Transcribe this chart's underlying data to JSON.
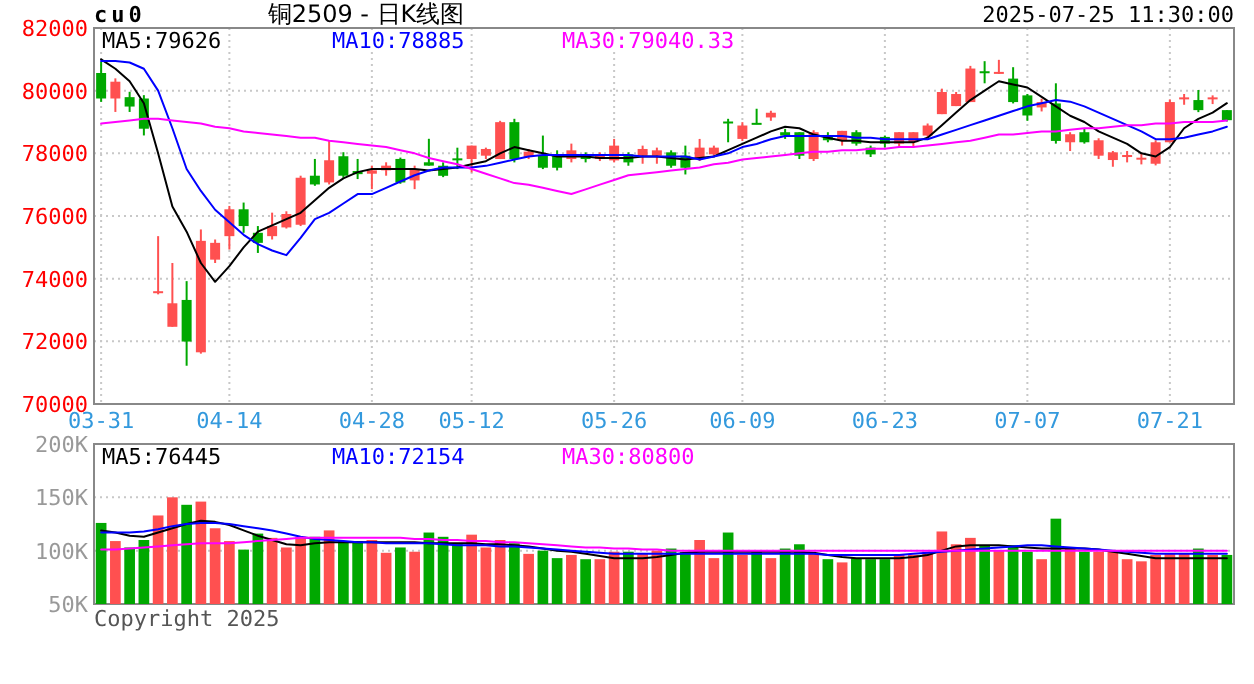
{
  "chart_data": [
    {
      "type": "candlestick",
      "title": "铜2509 - 日K线图",
      "annotations": [
        "cu0",
        "2025-07-25 11:30:00"
      ],
      "categories": [
        "03-31",
        null,
        null,
        null,
        null,
        null,
        null,
        null,
        null,
        "04-14",
        null,
        null,
        null,
        null,
        null,
        null,
        null,
        null,
        null,
        "04-28",
        null,
        null,
        null,
        null,
        null,
        null,
        "05-12",
        null,
        null,
        null,
        null,
        null,
        null,
        null,
        null,
        null,
        "05-26",
        null,
        null,
        null,
        null,
        null,
        null,
        null,
        null,
        "06-09",
        null,
        null,
        null,
        null,
        null,
        null,
        null,
        null,
        null,
        "06-23",
        null,
        null,
        null,
        null,
        null,
        null,
        null,
        null,
        null,
        "07-07",
        null,
        null,
        null,
        null,
        null,
        null,
        null,
        null,
        null,
        "07-21",
        null,
        null,
        null,
        null
      ],
      "ohlc": [
        [
          80564,
          80929,
          79643,
          79750
        ],
        [
          79750,
          80393,
          79321,
          80286
        ],
        [
          79793,
          79964,
          79321,
          79493
        ],
        [
          79750,
          79857,
          78571,
          78786
        ],
        [
          73536,
          75357,
          73500,
          73600
        ],
        [
          72464,
          74500,
          72464,
          73214
        ],
        [
          73321,
          73921,
          71221,
          71993
        ],
        [
          71650,
          75571,
          71607,
          75207
        ],
        [
          74607,
          75250,
          74500,
          75143
        ],
        [
          75357,
          76321,
          74929,
          76214
        ],
        [
          76214,
          76429,
          75464,
          75679
        ],
        [
          75464,
          75679,
          74821,
          75143
        ],
        [
          75357,
          76107,
          75250,
          75679
        ],
        [
          75636,
          76150,
          75600,
          76064
        ],
        [
          75721,
          77286,
          75679,
          77221
        ],
        [
          77286,
          77821,
          76964,
          77007
        ],
        [
          77071,
          78421,
          77007,
          77779
        ],
        [
          77907,
          78036,
          77221,
          77286
        ],
        [
          77436,
          77821,
          77179,
          77336
        ],
        [
          77350,
          77607,
          76857,
          77457
        ],
        [
          77457,
          77714,
          77286,
          77607
        ],
        [
          77821,
          77864,
          77029,
          77071
        ],
        [
          77136,
          77607,
          76857,
          77500
        ],
        [
          77714,
          78464,
          77607,
          77607
        ],
        [
          77604,
          77711,
          77240,
          77283
        ],
        [
          77840,
          78180,
          77497,
          77818
        ],
        [
          77818,
          78246,
          77390,
          78246
        ],
        [
          77925,
          78182,
          77818,
          78139
        ],
        [
          77818,
          79038,
          77818,
          78995
        ],
        [
          78995,
          79102,
          77711,
          77818
        ],
        [
          77882,
          78139,
          77818,
          78054
        ],
        [
          77925,
          78567,
          77497,
          77540
        ],
        [
          77968,
          78096,
          77454,
          77540
        ],
        [
          77818,
          78310,
          77711,
          78096
        ],
        [
          77968,
          78032,
          77711,
          77818
        ],
        [
          77818,
          78032,
          77754,
          77968
        ],
        [
          77775,
          78460,
          77711,
          78246
        ],
        [
          77968,
          78032,
          77604,
          77711
        ],
        [
          77925,
          78246,
          77668,
          78139
        ],
        [
          77925,
          78182,
          77668,
          78096
        ],
        [
          78032,
          78096,
          77540,
          77604
        ],
        [
          77925,
          78246,
          77326,
          77540
        ],
        [
          77818,
          78460,
          77754,
          78182
        ],
        [
          77968,
          78246,
          77925,
          78182
        ],
        [
          79016,
          79102,
          78353,
          78995
        ],
        [
          78460,
          78995,
          78396,
          78888
        ],
        [
          78973,
          79423,
          78931,
          78952
        ],
        [
          79145,
          79359,
          79038,
          79295
        ],
        [
          78674,
          78781,
          78460,
          78567
        ],
        [
          78674,
          78674,
          77818,
          77925
        ],
        [
          77818,
          78738,
          77754,
          78674
        ],
        [
          78567,
          78674,
          78353,
          78417
        ],
        [
          78417,
          78717,
          78246,
          78717
        ],
        [
          78674,
          78738,
          78246,
          78310
        ],
        [
          78182,
          78246,
          77882,
          77968
        ],
        [
          78524,
          78567,
          78182,
          78310
        ],
        [
          78310,
          78674,
          78182,
          78674
        ],
        [
          78353,
          78674,
          78182,
          78674
        ],
        [
          78567,
          78952,
          78524,
          78888
        ],
        [
          79251,
          80064,
          79251,
          79957
        ],
        [
          79508,
          79957,
          79508,
          79893
        ],
        [
          79636,
          80791,
          79636,
          80706
        ],
        [
          80620,
          80941,
          80235,
          80556
        ],
        [
          80556,
          80984,
          80535,
          80599
        ],
        [
          80385,
          80749,
          79593,
          79636
        ],
        [
          79850,
          79893,
          79037,
          79208
        ],
        [
          79465,
          79743,
          79337,
          79636
        ],
        [
          79593,
          80235,
          78310,
          78396
        ],
        [
          78353,
          78674,
          78075,
          78610
        ],
        [
          78674,
          78781,
          78310,
          78353
        ],
        [
          77925,
          78481,
          77818,
          78417
        ],
        [
          77786,
          78075,
          77572,
          78032
        ],
        [
          77904,
          78075,
          77711,
          77946
        ],
        [
          77818,
          78011,
          77647,
          77861
        ],
        [
          77668,
          78417,
          77615,
          78353
        ],
        [
          78353,
          79722,
          78353,
          79636
        ],
        [
          79743,
          79893,
          79550,
          79786
        ],
        [
          79700,
          80021,
          79315,
          79379
        ],
        [
          79743,
          79850,
          79572,
          79786
        ],
        [
          79379,
          79379,
          79016,
          79058
        ]
      ],
      "colors": [
        "#00a800",
        "#ff5050",
        "#00a800",
        "#00a800",
        "#ff5050",
        "#ff5050",
        "#00a800",
        "#ff5050",
        "#ff5050",
        "#ff5050",
        "#00a800",
        "#00a800",
        "#ff5050",
        "#ff5050",
        "#ff5050",
        "#00a800",
        "#ff5050",
        "#00a800",
        "#00a800",
        "#ff5050",
        "#ff5050",
        "#00a800",
        "#ff5050",
        "#00a800",
        "#00a800",
        "#00a800",
        "#ff5050",
        "#ff5050",
        "#ff5050",
        "#00a800",
        "#ff5050",
        "#00a800",
        "#00a800",
        "#ff5050",
        "#00a800",
        "#ff5050",
        "#ff5050",
        "#00a800",
        "#ff5050",
        "#ff5050",
        "#00a800",
        "#00a800",
        "#ff5050",
        "#ff5050",
        "#00a800",
        "#ff5050",
        "#00a800",
        "#ff5050",
        "#00a800",
        "#00a800",
        "#ff5050",
        "#00a800",
        "#ff5050",
        "#00a800",
        "#00a800",
        "#00a800",
        "#ff5050",
        "#ff5050",
        "#ff5050",
        "#ff5050",
        "#ff5050",
        "#ff5050",
        "#00a800",
        "#ff5050",
        "#00a800",
        "#00a800",
        "#ff5050",
        "#00a800",
        "#ff5050",
        "#00a800",
        "#ff5050",
        "#ff5050",
        "#ff5050",
        "#ff5050",
        "#ff5050",
        "#ff5050",
        "#ff5050",
        "#00a800",
        "#ff5050",
        "#00a800"
      ],
      "series": [
        {
          "type": "line",
          "name": "MA5:79626",
          "color": "#000000",
          "values": [
            81000,
            80700,
            80300,
            79600,
            78000,
            76300,
            75500,
            74500,
            73900,
            74400,
            75000,
            75500,
            75700,
            75900,
            76100,
            76500,
            76900,
            77200,
            77400,
            77500,
            77500,
            77500,
            77500,
            77450,
            77500,
            77550,
            77650,
            77750,
            78000,
            78200,
            78100,
            78000,
            77900,
            77900,
            77900,
            77850,
            77850,
            77850,
            77900,
            77900,
            77850,
            77800,
            77850,
            77900,
            78100,
            78300,
            78500,
            78700,
            78850,
            78800,
            78600,
            78500,
            78400,
            78400,
            78350,
            78350,
            78350,
            78350,
            78500,
            78900,
            79300,
            79700,
            80000,
            80300,
            80200,
            80100,
            79800,
            79500,
            79200,
            79000,
            78700,
            78500,
            78300,
            78000,
            77900,
            78200,
            78800,
            79100,
            79300,
            79600
          ]
        },
        {
          "type": "line",
          "name": "MA10:78885",
          "color": "#0000ff",
          "values": [
            80950,
            80950,
            80900,
            80700,
            80000,
            78800,
            77500,
            76800,
            76200,
            75800,
            75400,
            75100,
            74900,
            74750,
            75300,
            75900,
            76100,
            76400,
            76700,
            76700,
            76900,
            77100,
            77300,
            77450,
            77550,
            77550,
            77550,
            77600,
            77700,
            77800,
            77900,
            77950,
            77950,
            77950,
            77950,
            77950,
            77950,
            77950,
            77900,
            77900,
            77900,
            77900,
            77800,
            77900,
            78000,
            78200,
            78300,
            78450,
            78550,
            78550,
            78550,
            78550,
            78550,
            78500,
            78500,
            78450,
            78450,
            78450,
            78450,
            78600,
            78750,
            78900,
            79050,
            79200,
            79350,
            79500,
            79600,
            79700,
            79650,
            79500,
            79300,
            79100,
            78900,
            78700,
            78450,
            78450,
            78500,
            78600,
            78700,
            78850
          ]
        },
        {
          "type": "line",
          "name": "MA30:79040.33",
          "color": "#ff00ff",
          "values": [
            78950,
            79000,
            79050,
            79100,
            79100,
            79050,
            79000,
            78950,
            78850,
            78800,
            78700,
            78650,
            78600,
            78550,
            78500,
            78500,
            78400,
            78350,
            78300,
            78250,
            78200,
            78100,
            78000,
            77850,
            77750,
            77650,
            77500,
            77350,
            77200,
            77050,
            77000,
            76900,
            76800,
            76700,
            76850,
            77000,
            77150,
            77300,
            77350,
            77400,
            77450,
            77500,
            77550,
            77650,
            77700,
            77800,
            77850,
            77900,
            77950,
            78000,
            78050,
            78050,
            78100,
            78100,
            78150,
            78150,
            78200,
            78200,
            78250,
            78300,
            78350,
            78400,
            78500,
            78600,
            78600,
            78650,
            78700,
            78700,
            78750,
            78800,
            78800,
            78850,
            78900,
            78900,
            78950,
            78950,
            79000,
            79000,
            79000,
            79050
          ]
        }
      ],
      "ylim": [
        70000,
        82000
      ],
      "yticks": [
        70000,
        72000,
        74000,
        76000,
        78000,
        80000,
        82000
      ],
      "grid": true,
      "legend": "top"
    },
    {
      "type": "bar",
      "annotations": [
        "Copyright 2025"
      ],
      "tick_labels": "y",
      "categories": [
        null,
        null,
        null,
        null,
        null,
        null,
        null,
        null,
        null,
        null,
        null,
        null,
        null,
        null,
        null,
        null,
        null,
        null,
        null,
        null,
        null,
        null,
        null,
        null,
        null,
        null,
        null,
        null,
        null,
        null,
        null,
        null,
        null,
        null,
        null,
        null,
        null,
        null,
        null,
        null,
        null,
        null,
        null,
        null,
        null,
        null,
        null,
        null,
        null,
        null,
        null,
        null,
        null,
        null,
        null,
        null,
        null,
        null,
        null,
        null,
        null,
        null,
        null,
        null,
        null,
        null,
        null,
        null,
        null,
        null,
        null,
        null,
        null,
        null,
        null,
        null,
        null,
        null,
        null,
        null
      ],
      "series": [
        {
          "type": "bar",
          "values": [
            126000,
            109000,
            103000,
            110000,
            133000,
            150000,
            143000,
            146000,
            121000,
            109000,
            101000,
            116000,
            112000,
            103000,
            113000,
            113000,
            119000,
            109000,
            109000,
            110000,
            98000,
            103000,
            99000,
            117000,
            113000,
            107000,
            115000,
            103000,
            110000,
            107000,
            97000,
            100000,
            93000,
            96000,
            92000,
            92000,
            99000,
            99000,
            97000,
            100000,
            102000,
            99000,
            110000,
            93000,
            117000,
            96000,
            99000,
            93000,
            102000,
            106000,
            97000,
            92000,
            89000,
            93000,
            92000,
            92000,
            96000,
            96000,
            99000,
            118000,
            106000,
            112000,
            105000,
            100000,
            105000,
            99000,
            92000,
            130000,
            103000,
            99000,
            99000,
            99000,
            92000,
            90000,
            96000,
            97000,
            97000,
            102000,
            96000,
            96000
          ],
          "colors": [
            "#00a800",
            "#ff5050",
            "#00a800",
            "#00a800",
            "#ff5050",
            "#ff5050",
            "#00a800",
            "#ff5050",
            "#ff5050",
            "#ff5050",
            "#00a800",
            "#00a800",
            "#ff5050",
            "#ff5050",
            "#ff5050",
            "#00a800",
            "#ff5050",
            "#00a800",
            "#00a800",
            "#ff5050",
            "#ff5050",
            "#00a800",
            "#ff5050",
            "#00a800",
            "#00a800",
            "#00a800",
            "#ff5050",
            "#ff5050",
            "#ff5050",
            "#00a800",
            "#ff5050",
            "#00a800",
            "#00a800",
            "#ff5050",
            "#00a800",
            "#ff5050",
            "#ff5050",
            "#00a800",
            "#ff5050",
            "#ff5050",
            "#00a800",
            "#00a800",
            "#ff5050",
            "#ff5050",
            "#00a800",
            "#ff5050",
            "#00a800",
            "#ff5050",
            "#00a800",
            "#00a800",
            "#ff5050",
            "#00a800",
            "#ff5050",
            "#00a800",
            "#00a800",
            "#00a800",
            "#ff5050",
            "#ff5050",
            "#ff5050",
            "#ff5050",
            "#ff5050",
            "#ff5050",
            "#00a800",
            "#ff5050",
            "#00a800",
            "#00a800",
            "#ff5050",
            "#00a800",
            "#ff5050",
            "#00a800",
            "#ff5050",
            "#ff5050",
            "#ff5050",
            "#ff5050",
            "#ff5050",
            "#ff5050",
            "#ff5050",
            "#00a800",
            "#ff5050",
            "#00a800"
          ]
        },
        {
          "type": "line",
          "name": "MA5:76445",
          "color": "#000000",
          "values": [
            119000,
            117000,
            114000,
            113000,
            117000,
            121000,
            125000,
            128000,
            127000,
            124000,
            119000,
            114000,
            110000,
            106000,
            105000,
            107000,
            108000,
            108000,
            108000,
            108000,
            108000,
            108000,
            108000,
            107000,
            107000,
            107000,
            107000,
            106000,
            106000,
            105000,
            104000,
            102000,
            100000,
            99000,
            97000,
            95000,
            93000,
            93000,
            93000,
            94000,
            96000,
            98000,
            99000,
            99000,
            99000,
            99000,
            99000,
            99000,
            99000,
            99000,
            98000,
            96000,
            94000,
            93000,
            93000,
            93000,
            93000,
            94000,
            96000,
            100000,
            104000,
            105000,
            105000,
            105000,
            104000,
            103000,
            102000,
            102000,
            102000,
            102000,
            101000,
            99000,
            97000,
            95000,
            93000,
            93000,
            93000,
            93000,
            93000,
            93000
          ]
        },
        {
          "type": "line",
          "name": "MA10:72154",
          "color": "#0000ff",
          "values": [
            117000,
            117000,
            117000,
            118000,
            120000,
            123000,
            125000,
            126000,
            126000,
            125000,
            123000,
            121000,
            119000,
            116000,
            113000,
            111000,
            110000,
            109000,
            108000,
            108000,
            107000,
            107000,
            107000,
            107000,
            106000,
            105000,
            105000,
            105000,
            104000,
            104000,
            103000,
            102000,
            101000,
            100000,
            99000,
            98000,
            97000,
            97000,
            97000,
            97000,
            97000,
            97000,
            97000,
            97000,
            97000,
            97000,
            97000,
            97000,
            97000,
            97000,
            97000,
            96000,
            96000,
            96000,
            96000,
            96000,
            96000,
            97000,
            98000,
            99000,
            100000,
            101000,
            102000,
            103000,
            104000,
            105000,
            105000,
            104000,
            103000,
            102000,
            101000,
            100000,
            99000,
            98000,
            97000,
            97000,
            97000,
            97000,
            97000,
            97000
          ]
        },
        {
          "type": "line",
          "name": "MA30:80800",
          "color": "#ff00ff",
          "values": [
            101000,
            101000,
            102000,
            103000,
            104000,
            105000,
            106000,
            107000,
            107000,
            107000,
            108000,
            109000,
            110000,
            111000,
            112000,
            112000,
            112000,
            112000,
            112000,
            112000,
            112000,
            112000,
            111000,
            111000,
            110000,
            110000,
            109000,
            109000,
            108000,
            108000,
            107000,
            106000,
            105000,
            104000,
            103000,
            103000,
            102000,
            102000,
            101000,
            101000,
            100000,
            100000,
            100000,
            100000,
            100000,
            100000,
            100000,
            100000,
            100000,
            100000,
            100000,
            100000,
            100000,
            100000,
            100000,
            100000,
            100000,
            100000,
            100000,
            100000,
            100000,
            100000,
            100000,
            100000,
            100000,
            100000,
            100000,
            100000,
            100000,
            100000,
            100000,
            100000,
            100000,
            100000,
            100000,
            100000,
            100000,
            100000,
            100000,
            100000
          ]
        }
      ],
      "ylim": [
        50000,
        200000
      ],
      "yticks": [
        {
          "value": 50000,
          "label": "50K"
        },
        {
          "value": 100000,
          "label": "100K"
        },
        {
          "value": 150000,
          "label": "150K"
        },
        {
          "value": 200000,
          "label": "200K"
        }
      ],
      "grid": true,
      "legend": "top"
    }
  ]
}
